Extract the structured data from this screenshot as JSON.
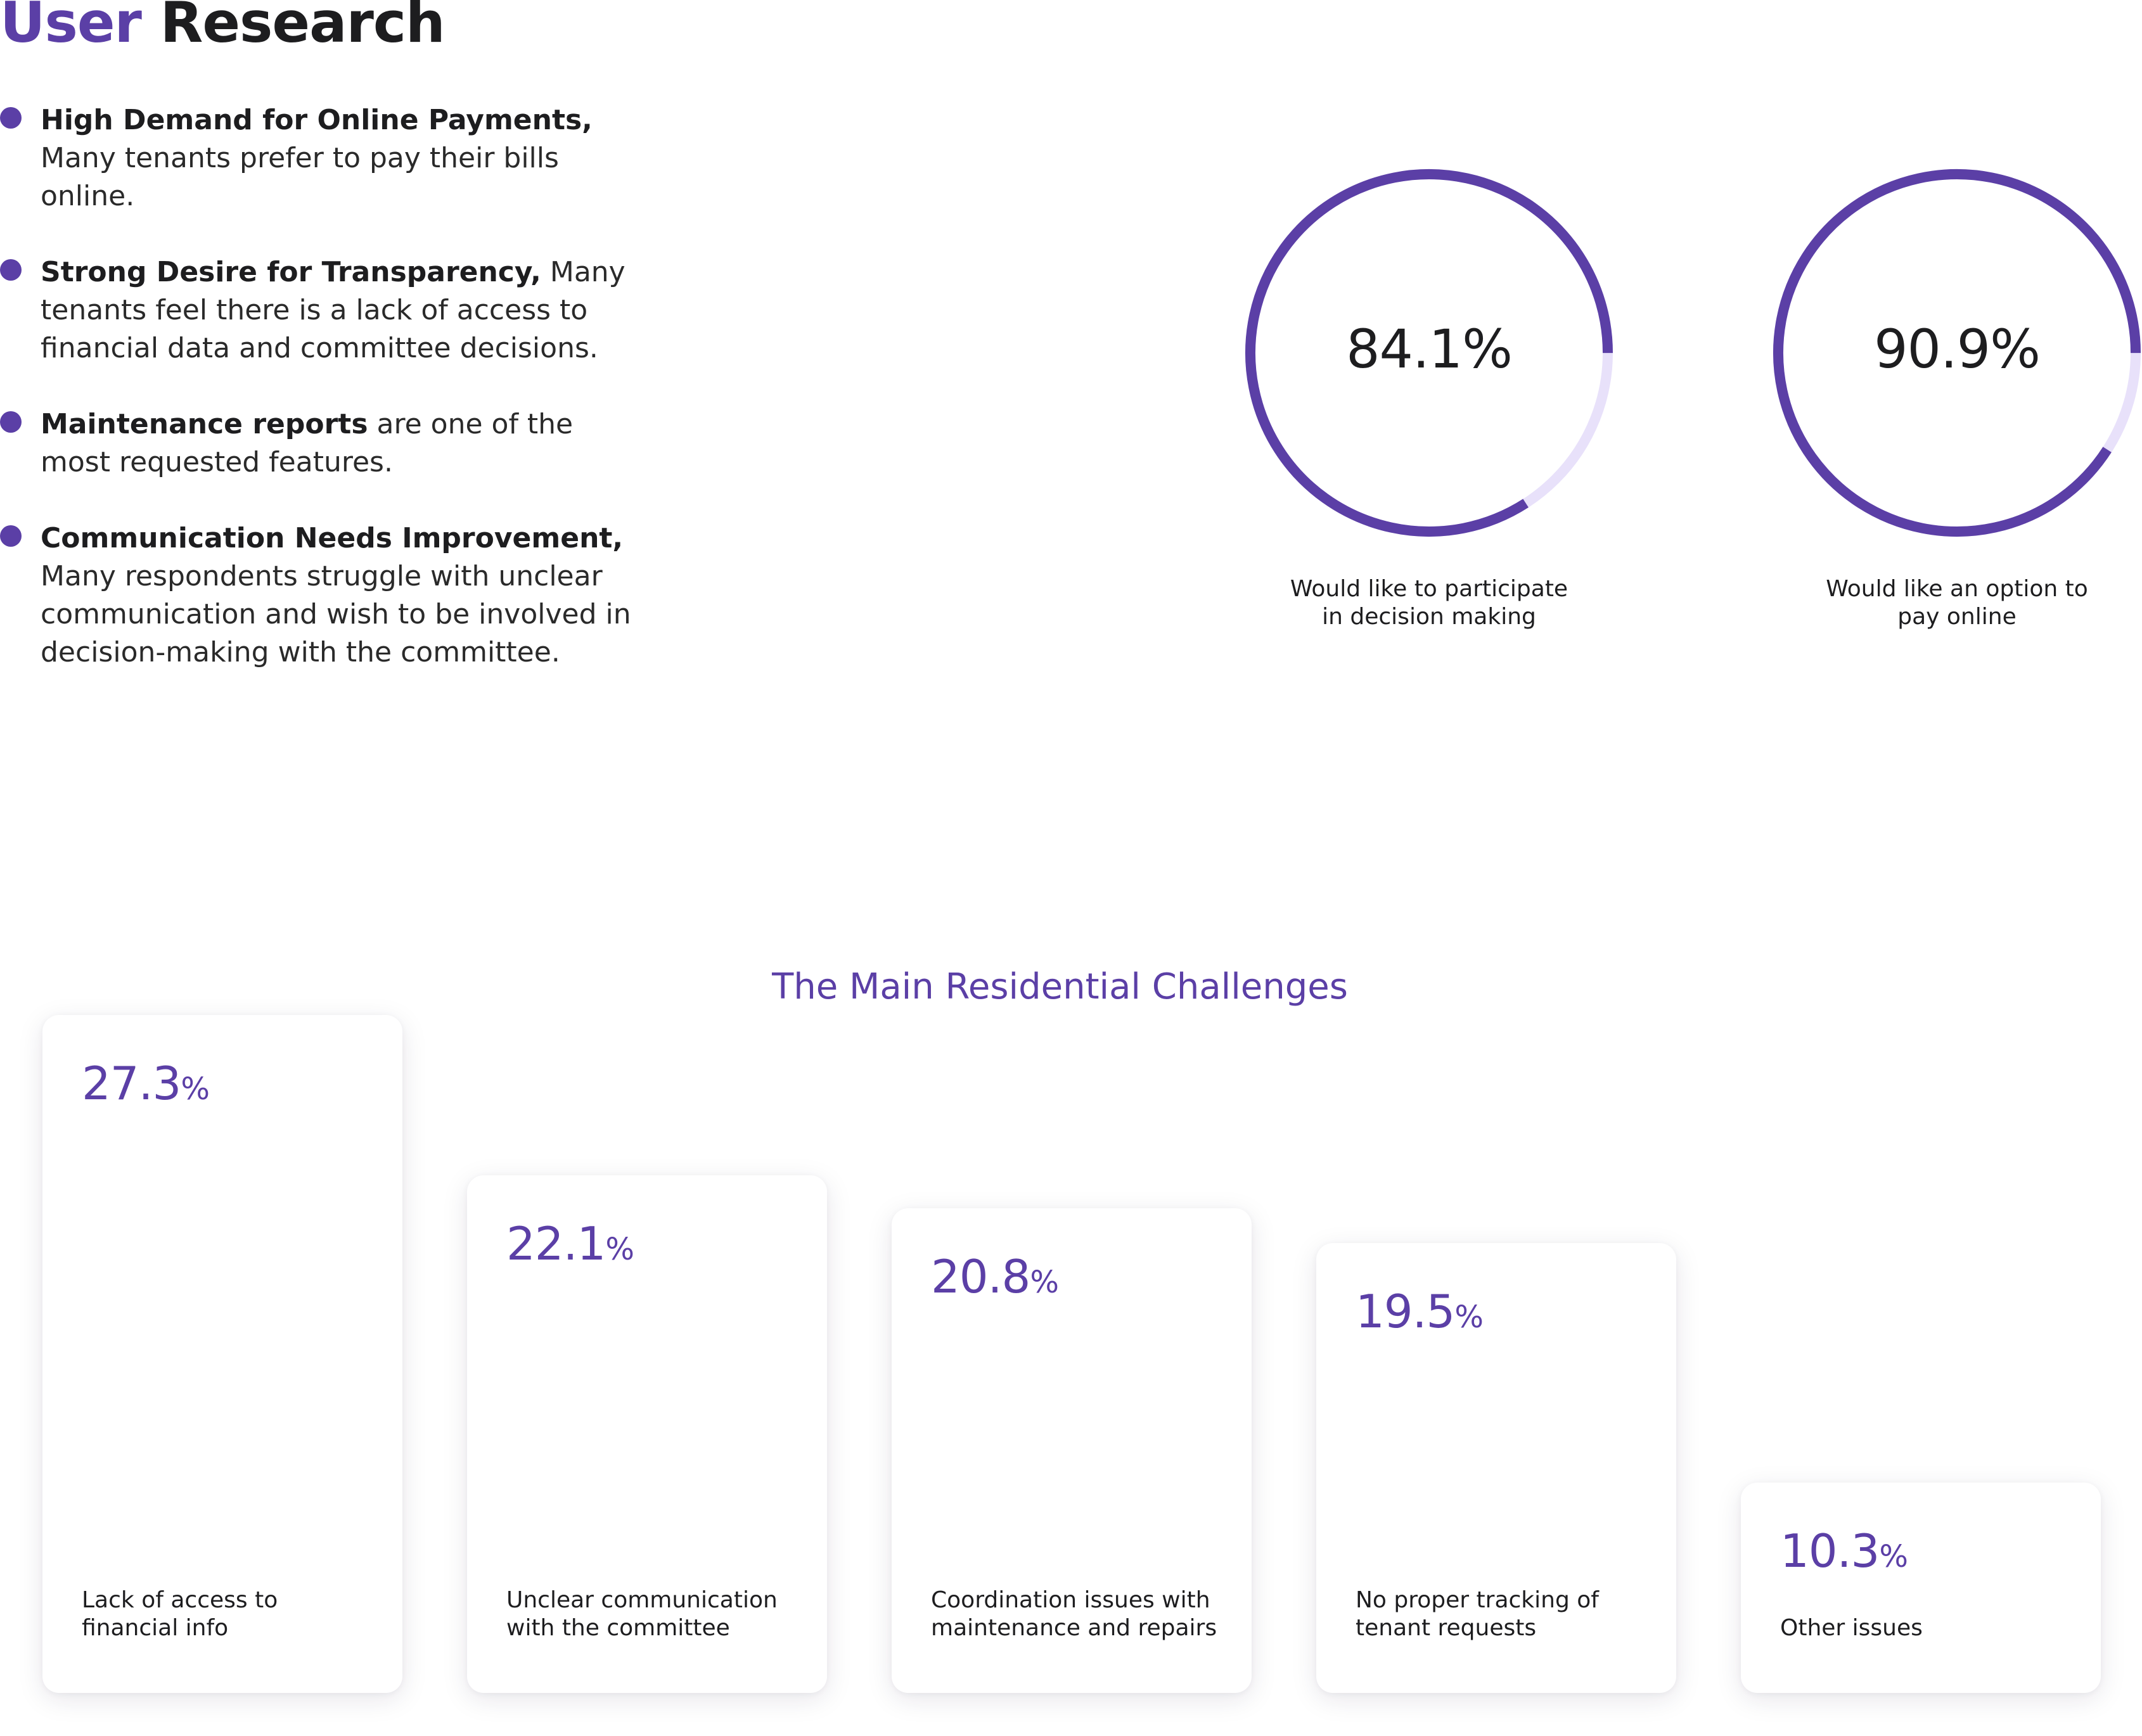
{
  "header": {
    "title_accent": "User",
    "title_rest": "Research"
  },
  "bullets": [
    {
      "strong": "High Demand for Online Payments,",
      "text": " Many tenants prefer to pay their bills online."
    },
    {
      "strong": "Strong Desire for Transparency,",
      "text": " Many tenants feel there is a lack of access to financial data and committee decisions."
    },
    {
      "strong": "Maintenance reports",
      "text": " are one of the most requested features."
    },
    {
      "strong": "Communication Needs Improvement,",
      "text": " Many respondents struggle with unclear communication and wish to be involved in decision-making with the committee."
    }
  ],
  "stats": [
    {
      "value": "84.1%",
      "fraction": 0.841,
      "caption": "Would like to participate in decision making"
    },
    {
      "value": "90.9%",
      "fraction": 0.909,
      "caption": "Would like an option to pay online"
    }
  ],
  "colors": {
    "accent": "#5b3fa6",
    "track": "#e8e1fa"
  },
  "section": {
    "title": "The Main Residential Challenges"
  },
  "challenges": [
    {
      "value": "27.3",
      "unit": "%",
      "label": "Lack of access to financial info"
    },
    {
      "value": "22.1",
      "unit": "%",
      "label": "Unclear communication with the committee"
    },
    {
      "value": "20.8",
      "unit": "%",
      "label": "Coordination issues with maintenance and repairs"
    },
    {
      "value": "19.5",
      "unit": "%",
      "label": "No proper tracking of tenant requests"
    },
    {
      "value": "10.3",
      "unit": "%",
      "label": "Other issues"
    }
  ]
}
